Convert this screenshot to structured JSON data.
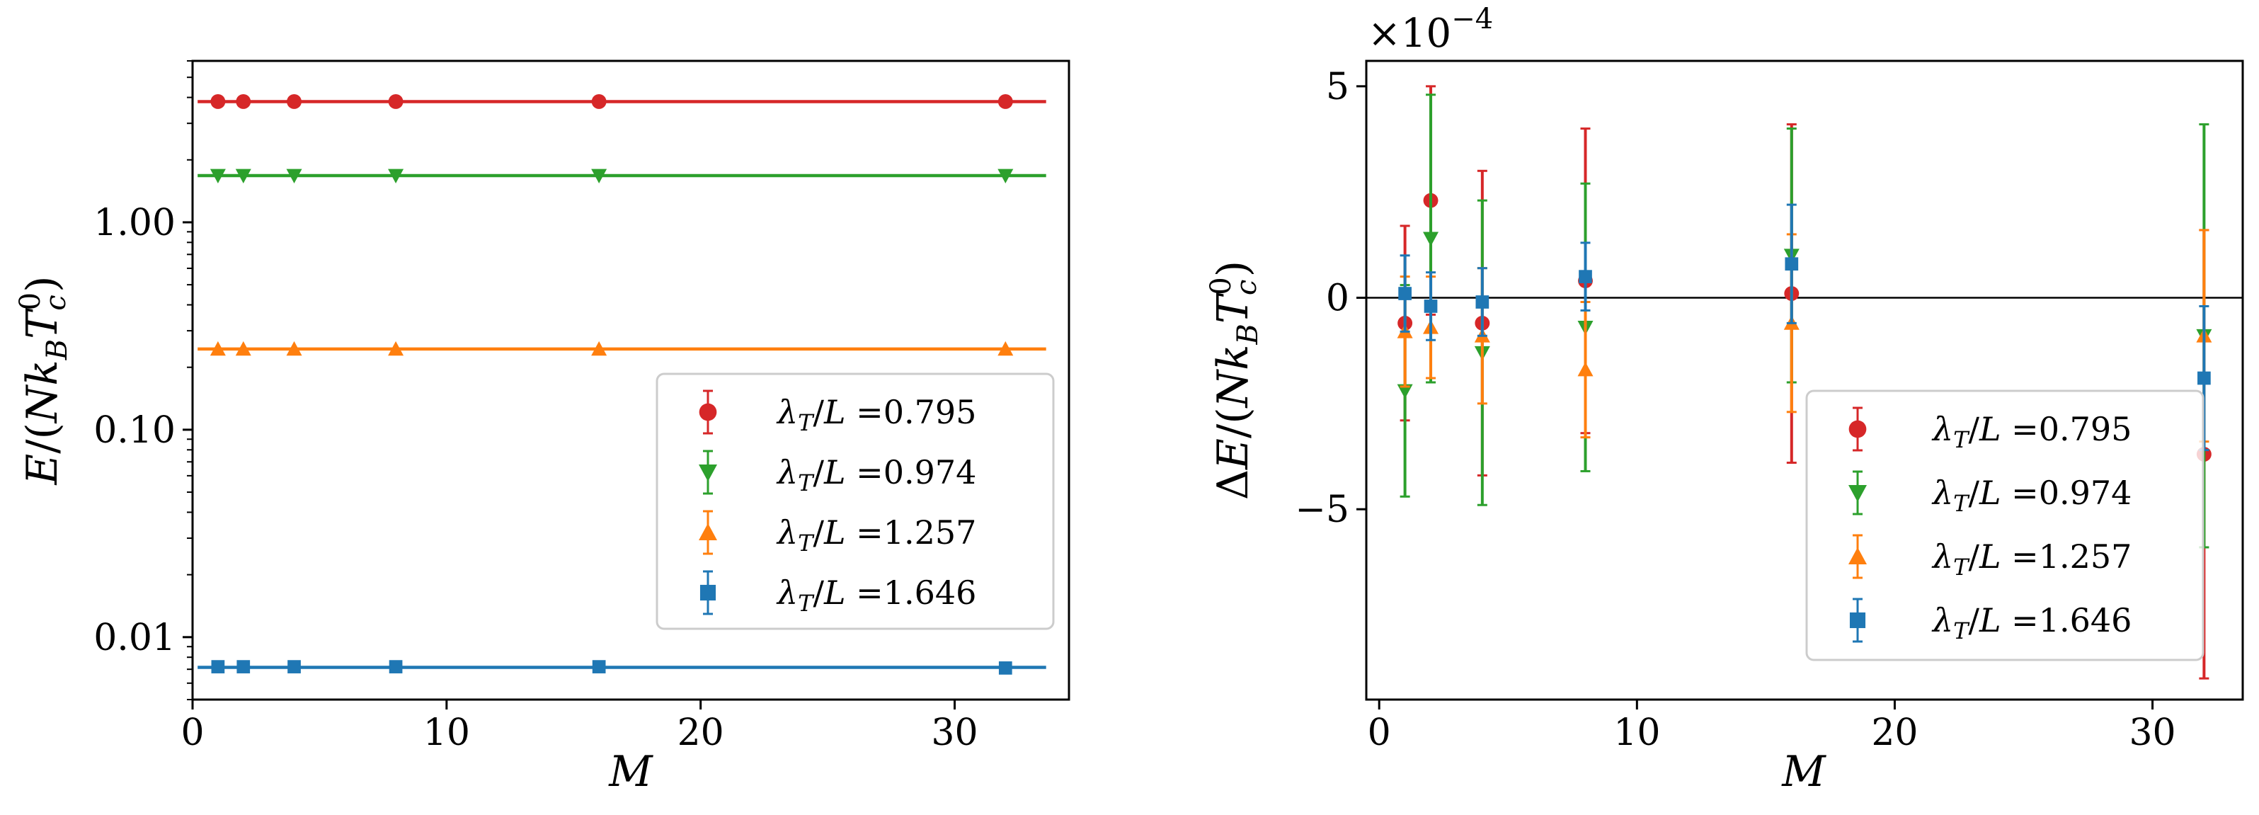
{
  "figure": {
    "panels": 2
  },
  "colors": {
    "red": "#d62728",
    "green": "#2ca02c",
    "orange": "#ff7f0e",
    "blue": "#1f77b4"
  },
  "chart_data": [
    {
      "type": "line",
      "panel": "left",
      "xlabel": "M",
      "ylabel": "E/(Nk_B T_c^0)",
      "yscale": "log",
      "xlim": [
        0,
        34.5
      ],
      "ylim": [
        0.005,
        6.0
      ],
      "xticks": [
        0,
        10,
        20,
        30
      ],
      "xtick_labels": [
        "0",
        "10",
        "20",
        "30"
      ],
      "yticks": [
        0.01,
        0.1,
        1.0
      ],
      "ytick_labels": [
        "0.01",
        "0.10",
        "1.00"
      ],
      "legend_position": "lower right",
      "series": [
        {
          "name": "λ_T/L =0.795",
          "legend_lambda": "λ",
          "legend_sub": "T",
          "legend_mid": "/",
          "legend_L": "L",
          "legend_value": "=0.795",
          "color": "#d62728",
          "marker": "circle",
          "x": [
            1,
            2,
            4,
            8,
            16,
            32
          ],
          "y": [
            3.82,
            3.82,
            3.82,
            3.82,
            3.82,
            3.82
          ],
          "fit": 3.82
        },
        {
          "name": "λ_T/L =0.974",
          "legend_lambda": "λ",
          "legend_sub": "T",
          "legend_mid": "/",
          "legend_L": "L",
          "legend_value": "=0.974",
          "color": "#2ca02c",
          "marker": "triangle-down",
          "x": [
            1,
            2,
            4,
            8,
            16,
            32
          ],
          "y": [
            1.68,
            1.68,
            1.68,
            1.68,
            1.68,
            1.68
          ],
          "fit": 1.68
        },
        {
          "name": "λ_T/L =1.257",
          "legend_lambda": "λ",
          "legend_sub": "T",
          "legend_mid": "/",
          "legend_L": "L",
          "legend_value": "=1.257",
          "color": "#ff7f0e",
          "marker": "triangle-up",
          "x": [
            1,
            2,
            4,
            8,
            16,
            32
          ],
          "y": [
            0.245,
            0.245,
            0.245,
            0.245,
            0.245,
            0.245
          ],
          "fit": 0.245
        },
        {
          "name": "λ_T/L =1.646",
          "legend_lambda": "λ",
          "legend_sub": "T",
          "legend_mid": "/",
          "legend_L": "L",
          "legend_value": "=1.646",
          "color": "#1f77b4",
          "marker": "square",
          "x": [
            1,
            2,
            4,
            8,
            16,
            32
          ],
          "y": [
            0.0072,
            0.0072,
            0.0072,
            0.0072,
            0.0072,
            0.0071
          ],
          "fit": 0.00715
        }
      ]
    },
    {
      "type": "scatter",
      "panel": "right",
      "xlabel": "M",
      "ylabel": "ΔE/(Nk_B T_c^0)",
      "offset_text": "×10",
      "offset_exponent": "−4",
      "xlim": [
        -0.5,
        33.5
      ],
      "ylim": [
        -9.5,
        5.6
      ],
      "xticks": [
        0,
        10,
        20,
        30
      ],
      "xtick_labels": [
        "0",
        "10",
        "20",
        "30"
      ],
      "yticks": [
        5,
        0,
        -5
      ],
      "ytick_labels": [
        "5",
        "0",
        "−5"
      ],
      "hline": 0,
      "legend_position": "lower right",
      "series": [
        {
          "name": "λ_T/L =0.795",
          "legend_lambda": "λ",
          "legend_sub": "T",
          "legend_mid": "/",
          "legend_L": "L",
          "legend_value": "=0.795",
          "color": "#d62728",
          "marker": "circle",
          "x": [
            1,
            2,
            4,
            8,
            16,
            32
          ],
          "y": [
            -0.6,
            2.3,
            -0.6,
            0.4,
            0.1,
            -3.7
          ],
          "err": [
            2.3,
            2.7,
            3.6,
            3.6,
            4.0,
            5.3
          ]
        },
        {
          "name": "λ_T/L =0.974",
          "legend_lambda": "λ",
          "legend_sub": "T",
          "legend_mid": "/",
          "legend_L": "L",
          "legend_value": "=0.974",
          "color": "#2ca02c",
          "marker": "triangle-down",
          "x": [
            1,
            2,
            4,
            8,
            16,
            32
          ],
          "y": [
            -2.2,
            1.4,
            -1.3,
            -0.7,
            1.0,
            -0.9
          ],
          "err": [
            2.5,
            3.4,
            3.6,
            3.4,
            3.0,
            5.0
          ]
        },
        {
          "name": "λ_T/L =1.257",
          "legend_lambda": "λ",
          "legend_sub": "T",
          "legend_mid": "/",
          "legend_L": "L",
          "legend_value": "=1.257",
          "color": "#ff7f0e",
          "marker": "triangle-up",
          "x": [
            1,
            2,
            4,
            8,
            16,
            32
          ],
          "y": [
            -0.8,
            -0.7,
            -0.9,
            -1.7,
            -0.6,
            -0.9
          ],
          "err": [
            1.3,
            1.2,
            1.6,
            1.6,
            2.1,
            2.5
          ]
        },
        {
          "name": "λ_T/L =1.646",
          "legend_lambda": "λ",
          "legend_sub": "T",
          "legend_mid": "/",
          "legend_L": "L",
          "legend_value": "=1.646",
          "color": "#1f77b4",
          "marker": "square",
          "x": [
            1,
            2,
            4,
            8,
            16,
            32
          ],
          "y": [
            0.1,
            -0.2,
            -0.1,
            0.5,
            0.8,
            -1.9
          ],
          "err": [
            0.9,
            0.8,
            0.8,
            0.8,
            1.4,
            1.7
          ]
        }
      ]
    }
  ]
}
